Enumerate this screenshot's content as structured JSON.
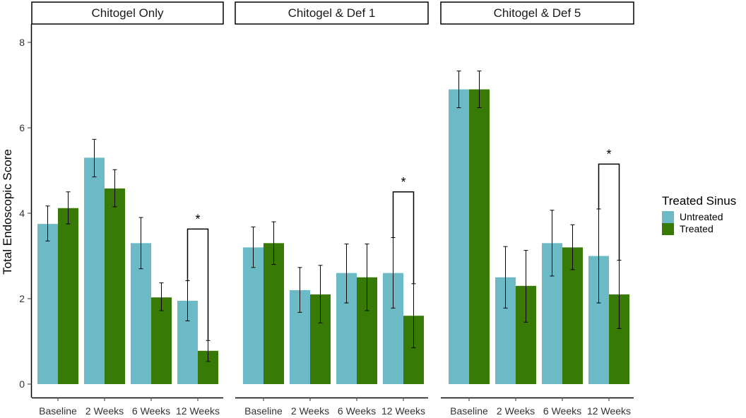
{
  "chart_data": {
    "type": "bar",
    "ylabel": "Total Endoscopic Score",
    "ylim": [
      0,
      8.5
    ],
    "yticks": [
      0,
      2,
      4,
      6,
      8
    ],
    "categories": [
      "Baseline",
      "2 Weeks",
      "6 Weeks",
      "12 Weeks"
    ],
    "legend": {
      "title": "Treated Sinus",
      "position": "right",
      "entries": [
        {
          "name": "Untreated",
          "color": "#6bbac6"
        },
        {
          "name": "Treated",
          "color": "#377a05"
        }
      ]
    },
    "panels": [
      {
        "title": "Chitogel Only",
        "series": [
          {
            "name": "Untreated",
            "values": [
              3.75,
              5.3,
              3.3,
              1.95
            ],
            "err_low": [
              3.35,
              4.85,
              2.7,
              1.48
            ],
            "err_high": [
              4.17,
              5.73,
              3.9,
              2.42
            ]
          },
          {
            "name": "Treated",
            "values": [
              4.12,
              4.58,
              2.03,
              0.78
            ],
            "err_low": [
              3.75,
              4.15,
              1.72,
              0.53
            ],
            "err_high": [
              4.5,
              5.02,
              2.37,
              1.02
            ]
          }
        ],
        "annotation": {
          "category": "12 Weeks",
          "label": "*",
          "bracket_top": 3.63
        }
      },
      {
        "title": "Chitogel & Def 1",
        "series": [
          {
            "name": "Untreated",
            "values": [
              3.2,
              2.2,
              2.6,
              2.6
            ],
            "err_low": [
              2.73,
              1.68,
              1.9,
              1.78
            ],
            "err_high": [
              3.68,
              2.73,
              3.28,
              3.43
            ]
          },
          {
            "name": "Treated",
            "values": [
              3.3,
              2.1,
              2.5,
              1.6
            ],
            "err_low": [
              2.8,
              1.43,
              1.72,
              0.85
            ],
            "err_high": [
              3.8,
              2.78,
              3.28,
              2.35
            ]
          }
        ],
        "annotation": {
          "category": "12 Weeks",
          "label": "*",
          "bracket_top": 4.5
        }
      },
      {
        "title": "Chitogel & Def 5",
        "series": [
          {
            "name": "Untreated",
            "values": [
              6.9,
              2.5,
              3.3,
              3.0
            ],
            "err_low": [
              6.47,
              1.78,
              2.53,
              1.9
            ],
            "err_high": [
              7.33,
              3.22,
              4.07,
              4.1
            ]
          },
          {
            "name": "Treated",
            "values": [
              6.9,
              2.3,
              3.2,
              2.1
            ],
            "err_low": [
              6.47,
              1.45,
              2.68,
              1.3
            ],
            "err_high": [
              7.33,
              3.13,
              3.73,
              2.9
            ]
          }
        ],
        "annotation": {
          "category": "12 Weeks",
          "label": "*",
          "bracket_top": 5.15
        }
      }
    ]
  }
}
